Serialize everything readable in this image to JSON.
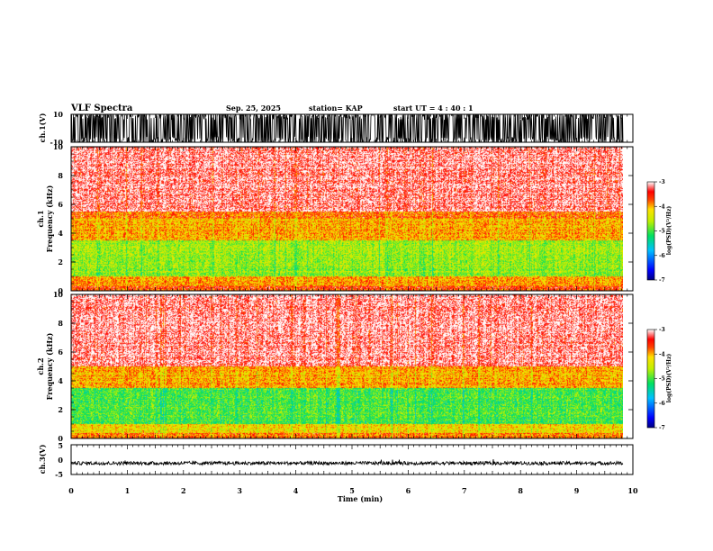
{
  "header": {
    "title": "VLF Spectra",
    "date": "Sep. 25, 2025",
    "station": "station= KAP",
    "start": "start  UT =   4 : 40 : 1"
  },
  "chart_data": [
    {
      "type": "line",
      "name": "ch.1 waveform",
      "ylabel": "ch.1(V)",
      "ylim": [
        -10,
        10
      ],
      "yticks": [
        "10",
        "-10"
      ],
      "x_range_min": [
        0,
        9.83
      ]
    },
    {
      "type": "heatmap",
      "name": "ch.1 spectrogram",
      "ylabel": "ch.1\nFrequency (kHz)",
      "ylabel_lines": [
        "ch.1",
        "Frequency (kHz)"
      ],
      "ylim": [
        0,
        10
      ],
      "yticks": [
        "0",
        "2",
        "4",
        "6",
        "8",
        "10"
      ],
      "bands": [
        {
          "from": 0,
          "to": 0.3,
          "level": -3.6
        },
        {
          "from": 0.3,
          "to": 1.0,
          "level": -3.9
        },
        {
          "from": 1.0,
          "to": 3.5,
          "level": -4.7
        },
        {
          "from": 3.5,
          "to": 5.5,
          "level": -4.0
        },
        {
          "from": 5.5,
          "to": 10,
          "level": -3.4
        }
      ],
      "colorbar": {
        "label": "log(PSD)(V²/Hz)",
        "range": [
          -7,
          -3
        ],
        "ticks": [
          "-3",
          "-4",
          "-5",
          "-6",
          "-7"
        ]
      }
    },
    {
      "type": "heatmap",
      "name": "ch.2 spectrogram",
      "ylabel": "ch.2\nFrequency (kHz)",
      "ylabel_lines": [
        "ch.2",
        "Frequency (kHz)"
      ],
      "ylim": [
        0,
        10
      ],
      "yticks": [
        "0",
        "2",
        "4",
        "6",
        "8",
        "10"
      ],
      "bands": [
        {
          "from": 0,
          "to": 0.4,
          "level": -3.8
        },
        {
          "from": 0.4,
          "to": 1.0,
          "level": -4.2
        },
        {
          "from": 1.0,
          "to": 3.5,
          "level": -5.0
        },
        {
          "from": 3.5,
          "to": 5.0,
          "level": -4.0
        },
        {
          "from": 5.0,
          "to": 10,
          "level": -3.4
        }
      ],
      "colorbar": {
        "label": "log(PSD)(V²/Hz)",
        "range": [
          -7,
          -3
        ],
        "ticks": [
          "-3",
          "-4",
          "-5",
          "-6",
          "-7"
        ]
      }
    },
    {
      "type": "line",
      "name": "ch.3 waveform",
      "ylabel": "ch.3(V)",
      "ylim": [
        -5,
        5
      ],
      "yticks": [
        "5",
        "0",
        "-5"
      ],
      "level": -1.2,
      "x_range_min": [
        0,
        9.83
      ]
    }
  ],
  "xaxis": {
    "label": "Time (min)",
    "range": [
      0,
      10
    ],
    "ticks": [
      "0",
      "1",
      "2",
      "3",
      "4",
      "5",
      "6",
      "7",
      "8",
      "9",
      "10"
    ],
    "data_end": 9.83
  },
  "colors": {
    "ink": "#000000",
    "background": "#ffffff"
  }
}
